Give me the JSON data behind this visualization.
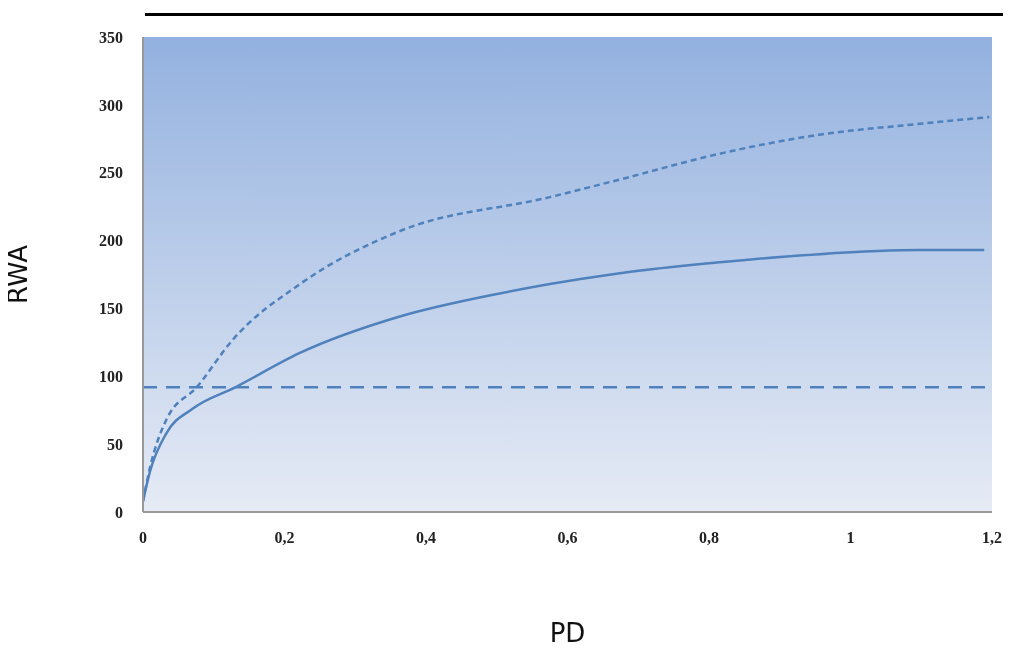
{
  "chart_data": {
    "type": "line",
    "xlabel": "PD",
    "ylabel": "RWA",
    "xlim": [
      0,
      1.2
    ],
    "xticks": [
      0,
      {
        "value": 0.2,
        "label": "0,2"
      },
      {
        "value": 0.4,
        "label": "0,4"
      },
      {
        "value": 0.6,
        "label": "0,6"
      },
      {
        "value": 0.8,
        "label": "0,8"
      },
      1,
      {
        "value": 1.2,
        "label": "1,2"
      }
    ],
    "ylim": [
      0,
      350
    ],
    "yticks": [
      0,
      50,
      100,
      150,
      200,
      250,
      300,
      350
    ],
    "grid": false,
    "marker": "none",
    "series": [
      {
        "color": "#4f81bd",
        "line_style": "solid",
        "x": [
          0,
          0.01,
          0.033,
          0.07,
          0.131,
          0.221,
          0.363,
          0.504,
          0.575,
          0.674,
          0.815,
          0.956,
          1.097,
          1.189
        ],
        "values": [
          8,
          30,
          58,
          76,
          92,
          117,
          144,
          161,
          168,
          176,
          184,
          190,
          193,
          193
        ]
      },
      {
        "color": "#4f81bd",
        "line_style": "dashed",
        "x": [
          0,
          0.01,
          0.033,
          0.076,
          0.127,
          0.222,
          0.363,
          0.575,
          0.674,
          0.815,
          0.956,
          1.097,
          1.196
        ],
        "values": [
          8,
          33,
          68,
          92,
          127,
          168,
          207,
          232,
          245,
          264,
          278,
          286,
          291
        ]
      }
    ],
    "ref_lines": [
      {
        "axis": "y",
        "value": 92,
        "color": "#4f81bd",
        "line_style": "dashed"
      }
    ]
  }
}
